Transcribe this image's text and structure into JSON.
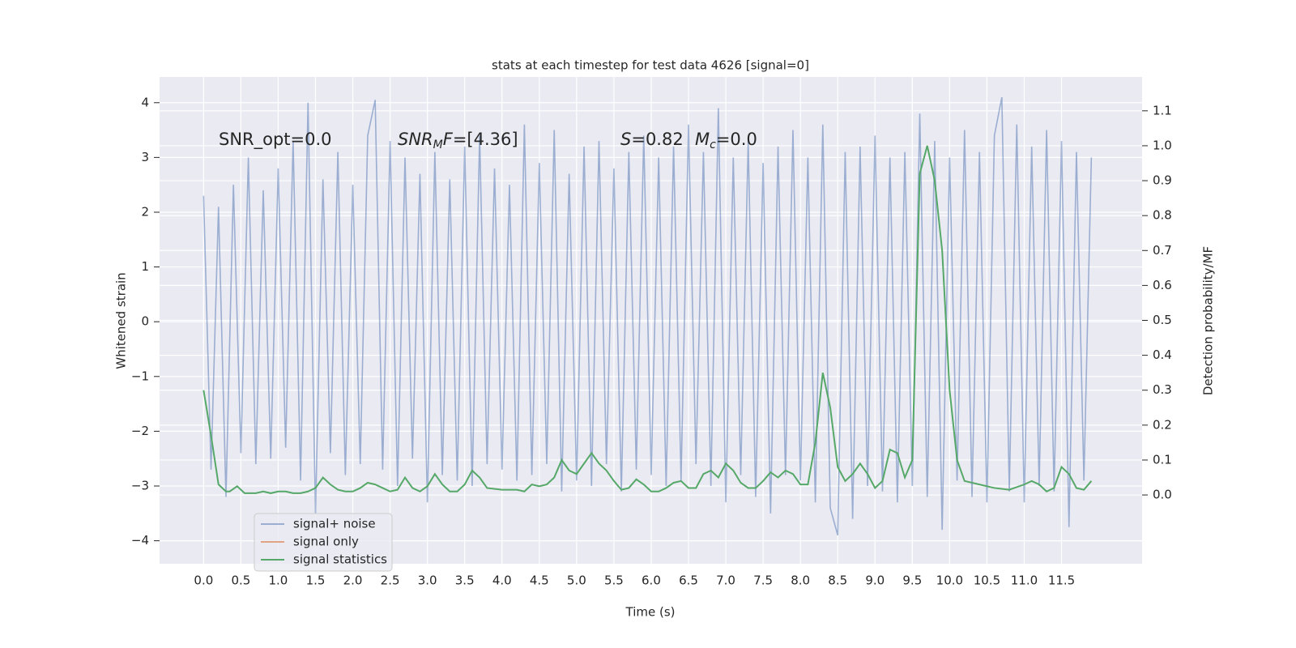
{
  "chart_data": {
    "type": "line",
    "title": "stats at each timestep for test data 4626 [signal=0]",
    "xlabel": "Time (s)",
    "ylabel": "Whitened strain",
    "y2label": "Detection probability/MF",
    "xlim": [
      -0.59,
      12.58
    ],
    "ylim": [
      -4.42,
      4.47
    ],
    "y2lim": [
      -0.197,
      1.197
    ],
    "xticks": [
      {
        "value": 0,
        "label": "0.0"
      },
      0.5,
      {
        "value": 1,
        "label": "1.0"
      },
      1.5,
      {
        "value": 2,
        "label": "2.0"
      },
      2.5,
      {
        "value": 3,
        "label": "3.0"
      },
      3.5,
      {
        "value": 4,
        "label": "4.0"
      },
      4.5,
      {
        "value": 5,
        "label": "5.0"
      },
      5.5,
      {
        "value": 6,
        "label": "6.0"
      },
      6.5,
      {
        "value": 7,
        "label": "7.0"
      },
      7.5,
      {
        "value": 8,
        "label": "8.0"
      },
      8.5,
      {
        "value": 9,
        "label": "9.0"
      },
      9.5,
      {
        "value": 10,
        "label": "10.0"
      },
      10.5,
      {
        "value": 11,
        "label": "11.0"
      },
      11.5
    ],
    "yticks": [
      {
        "value": -4,
        "label": "−4"
      },
      {
        "value": -3,
        "label": "−3"
      },
      {
        "value": -2,
        "label": "−2"
      },
      {
        "value": -1,
        "label": "−1"
      },
      0,
      1,
      2,
      3,
      4
    ],
    "y2ticks": [
      {
        "value": 0,
        "label": "0.0"
      },
      0.1,
      0.2,
      0.3,
      0.4,
      0.5,
      0.6,
      0.7,
      0.8,
      0.9,
      {
        "value": 1,
        "label": "1.0"
      },
      1.1
    ],
    "grid": true,
    "legend": "lower left",
    "annotations": [
      {
        "parts": [
          {
            "text": "SNR_opt=0.0"
          }
        ]
      },
      {
        "parts": [
          {
            "text": "SNR",
            "italic": true
          },
          {
            "text": "M",
            "italic": true,
            "sub": true
          },
          {
            "text": "F",
            "italic": true
          },
          {
            "text": "=[4.36]"
          }
        ]
      },
      {
        "parts": [
          {
            "text": "S",
            "italic": true
          },
          {
            "text": "=0.82"
          }
        ]
      },
      {
        "parts": [
          {
            "text": "M",
            "italic": true
          },
          {
            "text": "c",
            "italic": true,
            "sub": true
          },
          {
            "text": "=0.0"
          }
        ]
      }
    ],
    "series": [
      {
        "name": "signal+ noise",
        "color": "#4c72b0",
        "opacity": 0.5,
        "x": [
          0,
          0.1,
          0.2,
          0.3,
          0.4,
          0.5,
          0.6,
          0.7,
          0.8,
          0.9,
          1,
          1.1,
          1.2,
          1.3,
          1.4,
          1.5,
          1.6,
          1.7,
          1.8,
          1.9,
          2,
          2.1,
          2.2,
          2.3,
          2.4,
          2.5,
          2.6,
          2.7,
          2.8,
          2.9,
          3,
          3.1,
          3.2,
          3.3,
          3.4,
          3.5,
          3.6,
          3.7,
          3.8,
          3.9,
          4,
          4.1,
          4.2,
          4.3,
          4.4,
          4.5,
          4.6,
          4.7,
          4.8,
          4.9,
          5,
          5.1,
          5.2,
          5.3,
          5.4,
          5.5,
          5.6,
          5.7,
          5.8,
          5.9,
          6,
          6.1,
          6.2,
          6.3,
          6.4,
          6.5,
          6.6,
          6.7,
          6.8,
          6.9,
          7,
          7.1,
          7.2,
          7.3,
          7.4,
          7.5,
          7.6,
          7.7,
          7.8,
          7.9,
          8,
          8.1,
          8.2,
          8.3,
          8.4,
          8.5,
          8.6,
          8.7,
          8.8,
          8.9,
          9,
          9.1,
          9.2,
          9.3,
          9.4,
          9.5,
          9.6,
          9.7,
          9.8,
          9.9,
          10,
          10.1,
          10.2,
          10.3,
          10.4,
          10.5,
          10.6,
          10.7,
          10.8,
          10.9,
          11,
          11.1,
          11.2,
          11.3,
          11.4,
          11.5,
          11.6,
          11.7,
          11.8,
          11.9
        ],
        "values": [
          2.3,
          -2.7,
          2.1,
          -3.2,
          2.5,
          -2.4,
          3.0,
          -2.6,
          2.4,
          -2.5,
          2.8,
          -2.3,
          3.3,
          -2.9,
          4.0,
          -3.5,
          2.6,
          -2.4,
          3.1,
          -2.8,
          2.5,
          -2.6,
          3.4,
          4.05,
          -2.7,
          3.3,
          -3.0,
          3.0,
          -2.5,
          2.7,
          -3.3,
          3.1,
          -2.8,
          2.6,
          -2.9,
          3.2,
          -3.0,
          3.4,
          -2.6,
          2.8,
          -2.7,
          2.5,
          -2.9,
          3.6,
          -2.8,
          2.9,
          -2.6,
          3.5,
          -3.1,
          2.7,
          -2.9,
          3.2,
          -3.0,
          3.3,
          -2.6,
          2.8,
          -3.1,
          3.1,
          -2.7,
          3.4,
          -2.8,
          3.0,
          -3.0,
          3.2,
          -2.9,
          3.6,
          -2.6,
          3.1,
          -3.0,
          3.9,
          -3.3,
          3.0,
          -2.8,
          3.3,
          -3.2,
          2.9,
          -3.5,
          3.2,
          -2.8,
          3.5,
          -2.9,
          3.0,
          -3.3,
          3.6,
          -3.4,
          -3.9,
          3.1,
          -3.6,
          3.2,
          -3.0,
          3.4,
          -3.1,
          3.0,
          -3.3,
          3.1,
          -3.0,
          3.8,
          -3.2,
          3.3,
          -3.8,
          3.0,
          -2.9,
          3.5,
          -3.2,
          3.1,
          -3.3,
          3.4,
          4.1,
          -3.1,
          3.6,
          -3.3,
          3.2,
          -3.0,
          3.5,
          -3.1,
          3.3,
          -3.75,
          3.1,
          -2.9,
          3.0
        ]
      },
      {
        "name": "signal only",
        "color": "#dd8452"
      },
      {
        "name": "signal statistics",
        "color": "#55a868",
        "axis": "y2",
        "x": [
          0,
          0.1,
          0.2,
          0.3,
          0.35,
          0.45,
          0.55,
          0.7,
          0.8,
          0.9,
          1,
          1.1,
          1.2,
          1.3,
          1.4,
          1.5,
          1.6,
          1.7,
          1.8,
          1.9,
          2,
          2.1,
          2.2,
          2.3,
          2.4,
          2.5,
          2.6,
          2.7,
          2.8,
          2.9,
          3,
          3.1,
          3.2,
          3.3,
          3.4,
          3.5,
          3.6,
          3.7,
          3.8,
          4,
          4.2,
          4.3,
          4.4,
          4.5,
          4.6,
          4.7,
          4.8,
          4.9,
          5,
          5.1,
          5.2,
          5.3,
          5.4,
          5.5,
          5.6,
          5.7,
          5.8,
          5.9,
          6,
          6.1,
          6.2,
          6.3,
          6.4,
          6.5,
          6.6,
          6.7,
          6.8,
          6.9,
          7,
          7.1,
          7.2,
          7.3,
          7.4,
          7.5,
          7.6,
          7.7,
          7.8,
          7.9,
          8,
          8.1,
          8.2,
          8.3,
          8.4,
          8.5,
          8.6,
          8.7,
          8.8,
          8.9,
          9,
          9.1,
          9.2,
          9.3,
          9.4,
          9.5,
          9.6,
          9.7,
          9.8,
          9.9,
          10,
          10.1,
          10.2,
          10.4,
          10.6,
          10.8,
          11,
          11.1,
          11.2,
          11.3,
          11.4,
          11.5,
          11.6,
          11.7,
          11.8,
          11.9
        ],
        "values": [
          0.3,
          0.17,
          0.03,
          0.01,
          0.01,
          0.025,
          0.005,
          0.005,
          0.01,
          0.005,
          0.01,
          0.01,
          0.005,
          0.005,
          0.01,
          0.02,
          0.05,
          0.03,
          0.015,
          0.01,
          0.01,
          0.02,
          0.035,
          0.03,
          0.02,
          0.01,
          0.015,
          0.05,
          0.02,
          0.01,
          0.025,
          0.06,
          0.03,
          0.01,
          0.01,
          0.03,
          0.07,
          0.05,
          0.02,
          0.015,
          0.015,
          0.01,
          0.03,
          0.025,
          0.03,
          0.05,
          0.1,
          0.07,
          0.06,
          0.09,
          0.12,
          0.09,
          0.07,
          0.04,
          0.015,
          0.02,
          0.045,
          0.03,
          0.01,
          0.01,
          0.02,
          0.035,
          0.04,
          0.02,
          0.02,
          0.06,
          0.07,
          0.05,
          0.09,
          0.07,
          0.035,
          0.02,
          0.02,
          0.04,
          0.065,
          0.05,
          0.07,
          0.06,
          0.03,
          0.03,
          0.15,
          0.35,
          0.25,
          0.08,
          0.04,
          0.06,
          0.09,
          0.06,
          0.02,
          0.04,
          0.13,
          0.12,
          0.05,
          0.1,
          0.92,
          1.0,
          0.9,
          0.7,
          0.3,
          0.1,
          0.04,
          0.03,
          0.02,
          0.015,
          0.03,
          0.04,
          0.03,
          0.01,
          0.02,
          0.08,
          0.06,
          0.02,
          0.015,
          0.04
        ]
      }
    ]
  }
}
